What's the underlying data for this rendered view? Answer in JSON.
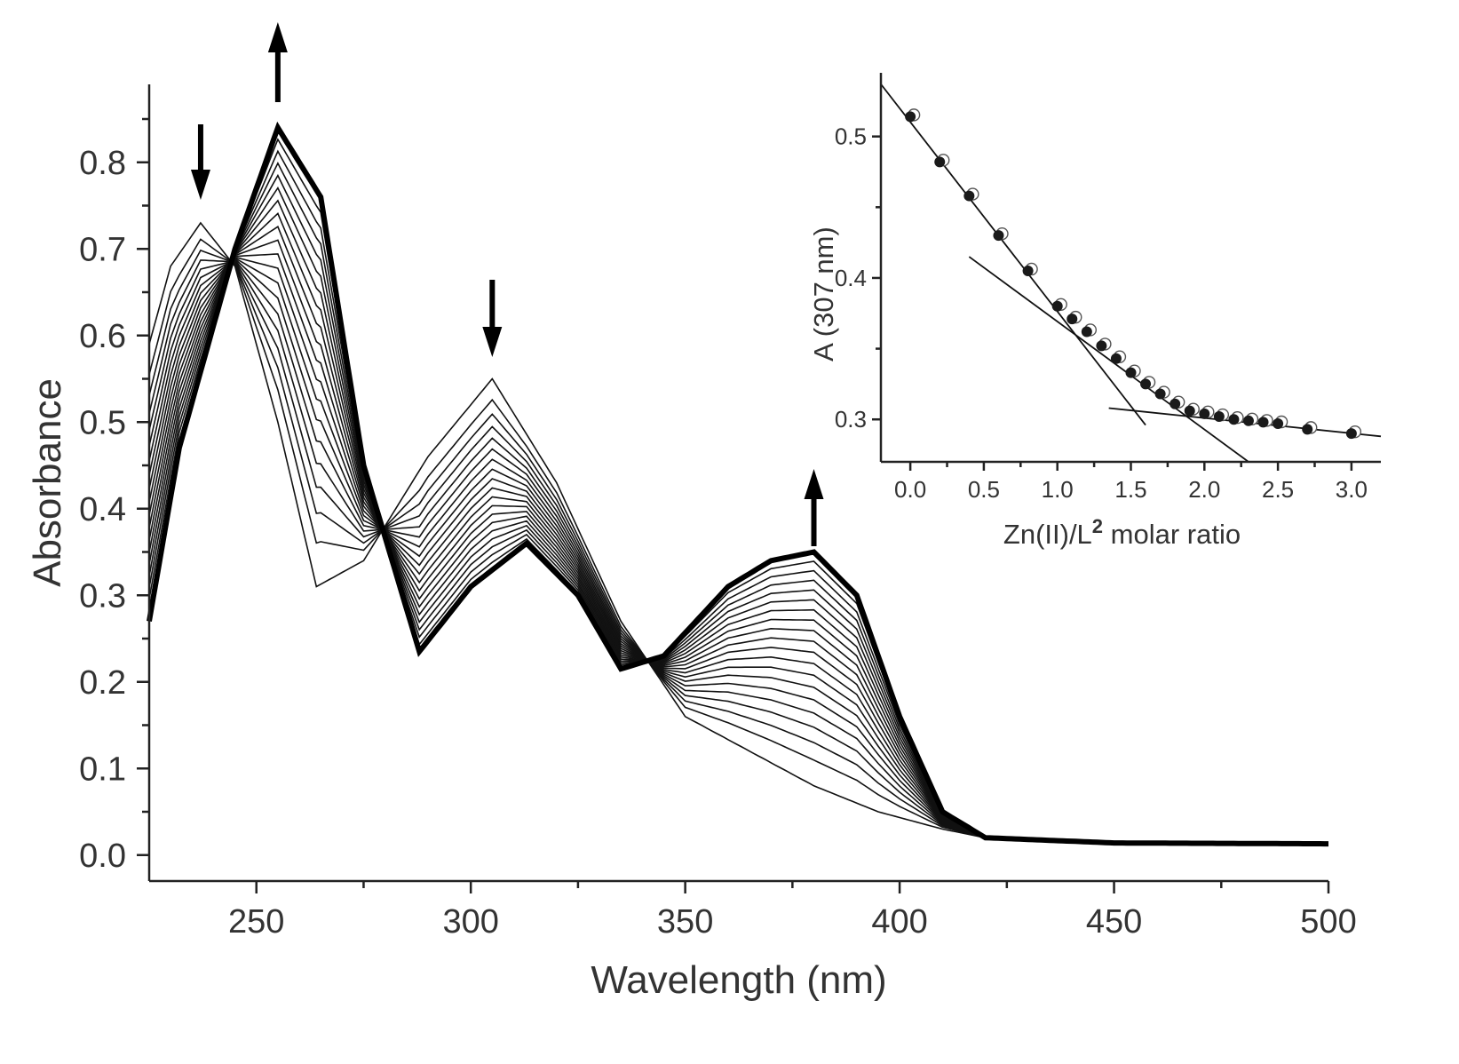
{
  "chart_data": [
    {
      "type": "line",
      "xlabel": "Wavelength (nm)",
      "ylabel": "Absorbance",
      "xlim": [
        225,
        500
      ],
      "ylim": [
        -0.03,
        0.89
      ],
      "xticks": [
        250,
        300,
        350,
        400,
        450,
        500
      ],
      "yticks": [
        "0.0",
        "0.1",
        "0.2",
        "0.3",
        "0.4",
        "0.5",
        "0.6",
        "0.7",
        "0.8"
      ],
      "grid": false,
      "legend": "none",
      "n_spectra": 20,
      "initial_spectrum": {
        "x": [
          225,
          230,
          237,
          245,
          255,
          264,
          275,
          290,
          305,
          320,
          335,
          350,
          365,
          380,
          395,
          410,
          420,
          450,
          500
        ],
        "y": [
          0.59,
          0.68,
          0.73,
          0.68,
          0.5,
          0.31,
          0.34,
          0.46,
          0.55,
          0.43,
          0.27,
          0.16,
          0.12,
          0.08,
          0.05,
          0.03,
          0.02,
          0.015,
          0.013
        ]
      },
      "final_spectrum": {
        "x": [
          225,
          232,
          245,
          255,
          265,
          275,
          288,
          300,
          313,
          325,
          335,
          345,
          360,
          370,
          380,
          390,
          400,
          410,
          420,
          450,
          500
        ],
        "y": [
          0.27,
          0.47,
          0.7,
          0.84,
          0.76,
          0.45,
          0.235,
          0.31,
          0.36,
          0.3,
          0.215,
          0.23,
          0.31,
          0.34,
          0.35,
          0.3,
          0.16,
          0.05,
          0.02,
          0.014,
          0.013
        ]
      },
      "isosbestic_points": [
        {
          "x": 244,
          "y": 0.68
        },
        {
          "x": 277,
          "y": 0.34
        },
        {
          "x": 343,
          "y": 0.225
        }
      ],
      "trend_arrows": [
        {
          "x": 237,
          "direction": "down"
        },
        {
          "x": 255,
          "direction": "up"
        },
        {
          "x": 305,
          "direction": "down"
        },
        {
          "x": 380,
          "direction": "up"
        }
      ]
    },
    {
      "type": "scatter",
      "xlabel": "Zn(II)/L",
      "xlabel_sup": "2",
      "xlabel_suffix": " molar ratio",
      "ylabel": "A (307 nm)",
      "xlim": [
        -0.2,
        3.2
      ],
      "ylim": [
        0.27,
        0.545
      ],
      "xticks": [
        "0.0",
        "0.5",
        "1.0",
        "1.5",
        "2.0",
        "2.5",
        "3.0"
      ],
      "yticks": [
        "0.3",
        "0.4",
        "0.5"
      ],
      "series": [
        {
          "x": [
            0.0,
            0.2,
            0.4,
            0.6,
            0.8,
            1.0,
            1.1,
            1.2,
            1.3,
            1.4,
            1.5,
            1.6,
            1.7,
            1.8,
            1.9,
            2.0,
            2.1,
            2.2,
            2.3,
            2.4,
            2.5,
            2.7,
            3.0
          ],
          "y": [
            0.514,
            0.482,
            0.458,
            0.43,
            0.405,
            0.38,
            0.371,
            0.362,
            0.352,
            0.343,
            0.333,
            0.325,
            0.318,
            0.311,
            0.306,
            0.304,
            0.302,
            0.3,
            0.299,
            0.298,
            0.297,
            0.293,
            0.29
          ]
        }
      ],
      "fit_lines": [
        {
          "x": [
            -0.2,
            1.6
          ],
          "y": [
            0.537,
            0.296
          ]
        },
        {
          "x": [
            0.4,
            2.3
          ],
          "y": [
            0.415,
            0.27
          ]
        },
        {
          "x": [
            1.35,
            3.2
          ],
          "y": [
            0.308,
            0.288
          ]
        }
      ]
    }
  ]
}
